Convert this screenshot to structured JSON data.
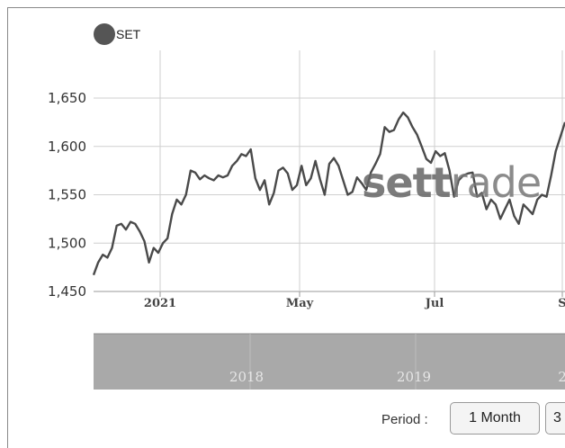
{
  "legend": {
    "label": "SET",
    "color": "#555555"
  },
  "watermark": {
    "bold": "sett",
    "light": "rade"
  },
  "period": {
    "label": "Period :",
    "buttons": [
      "1 Month",
      "3"
    ]
  },
  "colors": {
    "line": "#4a4a4a",
    "grid": "#cfcfcf",
    "navigator": "#a9a9a9"
  },
  "navigator": {
    "labels": [
      "2018",
      "2019",
      "2"
    ]
  },
  "chart_data": {
    "type": "line",
    "title": "",
    "xlabel": "",
    "ylabel": "",
    "ylim": [
      1450,
      1660
    ],
    "yticks": [
      1450,
      1500,
      1550,
      1600,
      1650
    ],
    "ytick_labels": [
      "1,450",
      "1,500",
      "1,550",
      "1,600",
      "1,650"
    ],
    "xticks": [
      "2021",
      "May",
      "Jul",
      "S"
    ],
    "grid": true,
    "legend_position": "top-left",
    "series": [
      {
        "name": "SET",
        "values": [
          1467,
          1480,
          1488,
          1485,
          1495,
          1518,
          1520,
          1514,
          1522,
          1520,
          1512,
          1502,
          1480,
          1495,
          1490,
          1500,
          1505,
          1530,
          1545,
          1540,
          1550,
          1575,
          1573,
          1566,
          1570,
          1567,
          1565,
          1570,
          1568,
          1570,
          1580,
          1585,
          1592,
          1590,
          1597,
          1567,
          1555,
          1565,
          1540,
          1552,
          1575,
          1578,
          1572,
          1555,
          1560,
          1580,
          1560,
          1567,
          1585,
          1566,
          1550,
          1582,
          1588,
          1580,
          1565,
          1550,
          1553,
          1568,
          1562,
          1555,
          1573,
          1582,
          1592,
          1620,
          1615,
          1617,
          1628,
          1635,
          1630,
          1620,
          1612,
          1600,
          1587,
          1583,
          1595,
          1590,
          1593,
          1575,
          1548,
          1565,
          1570,
          1572,
          1573,
          1548,
          1552,
          1535,
          1545,
          1540,
          1525,
          1535,
          1545,
          1528,
          1520,
          1540,
          1535,
          1530,
          1545,
          1550,
          1548,
          1570,
          1595,
          1610,
          1625
        ]
      }
    ]
  }
}
